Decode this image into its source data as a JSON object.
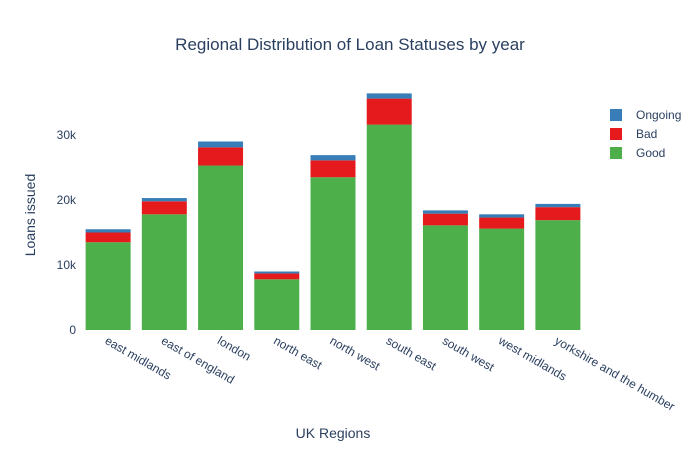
{
  "chart_data": {
    "type": "bar",
    "stacked": true,
    "title": "Regional Distribution of Loan Statuses by year",
    "xlabel": "UK Regions",
    "ylabel": "Loans issued",
    "ylim": [
      0,
      40000
    ],
    "yticks": [
      {
        "value": 0,
        "label": "0"
      },
      {
        "value": 10000,
        "label": "10k"
      },
      {
        "value": 20000,
        "label": "20k"
      },
      {
        "value": 30000,
        "label": "30k"
      }
    ],
    "legend_position": "top-right",
    "categories": [
      "east midlands",
      "east of england",
      "london",
      "north east",
      "north west",
      "south east",
      "south west",
      "west midlands",
      "yorkshire and the humber"
    ],
    "series": [
      {
        "name": "Good",
        "color": "#4daf4a",
        "values": [
          13500,
          17800,
          25300,
          7800,
          23500,
          31600,
          16100,
          15600,
          16900
        ]
      },
      {
        "name": "Bad",
        "color": "#e41a1c",
        "values": [
          1500,
          2000,
          2800,
          900,
          2600,
          4000,
          1800,
          1700,
          2000
        ]
      },
      {
        "name": "Ongoing",
        "color": "#377eb8",
        "values": [
          500,
          500,
          900,
          300,
          800,
          800,
          500,
          500,
          500
        ]
      }
    ]
  }
}
